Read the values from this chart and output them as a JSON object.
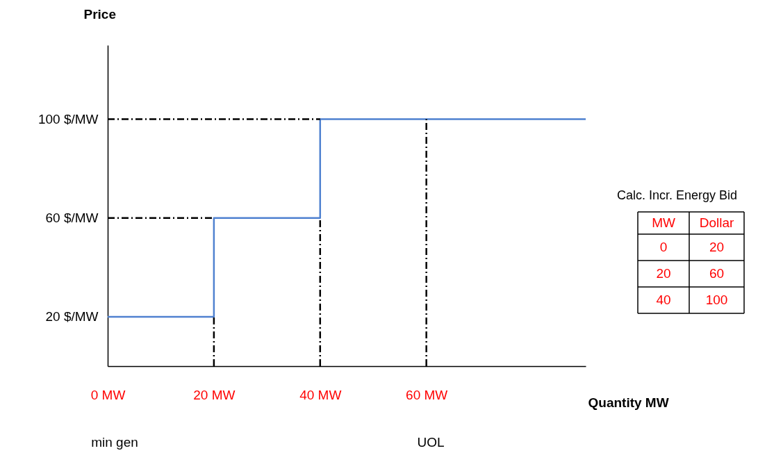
{
  "chart_data": [
    {
      "type": "step",
      "xlabel": "Quantity MW",
      "ylabel": "Price",
      "xlim": [
        0,
        90
      ],
      "ylim": [
        0,
        130
      ],
      "xticks": [
        {
          "value": 0,
          "label": "0 MW"
        },
        {
          "value": 20,
          "label": "20 MW"
        },
        {
          "value": 40,
          "label": "40 MW"
        },
        {
          "value": 60,
          "label": "60 MW"
        }
      ],
      "yticks": [
        {
          "value": 20,
          "label": "20 $/MW"
        },
        {
          "value": 60,
          "label": "60 $/MW"
        },
        {
          "value": 100,
          "label": "100 $/MW"
        }
      ],
      "series": [
        {
          "x": [
            0,
            20,
            40,
            90
          ],
          "values": [
            20,
            60,
            100,
            100
          ],
          "color": "#4f81d0"
        }
      ],
      "ref_lines": [
        {
          "axis": "y",
          "value": 60,
          "color": "#000000",
          "line_style": "dashed"
        },
        {
          "axis": "y",
          "value": 100,
          "color": "#000000",
          "line_style": "dashed"
        },
        {
          "axis": "x",
          "value": 20,
          "color": "#000000",
          "line_style": "dashed"
        },
        {
          "axis": "x",
          "value": 40,
          "color": "#000000",
          "line_style": "dashed"
        },
        {
          "axis": "x",
          "value": 60,
          "color": "#000000",
          "line_style": "dashed"
        }
      ],
      "annotations": [
        "min gen",
        "UOL"
      ],
      "grid": false,
      "marker": "none",
      "line_style": "solid"
    },
    {
      "type": "other",
      "title": "Calc. Incr. Energy Bid",
      "annotations": [
        "MW",
        "Dollar",
        "0",
        "20",
        "20",
        "60",
        "40",
        "100"
      ]
    }
  ]
}
